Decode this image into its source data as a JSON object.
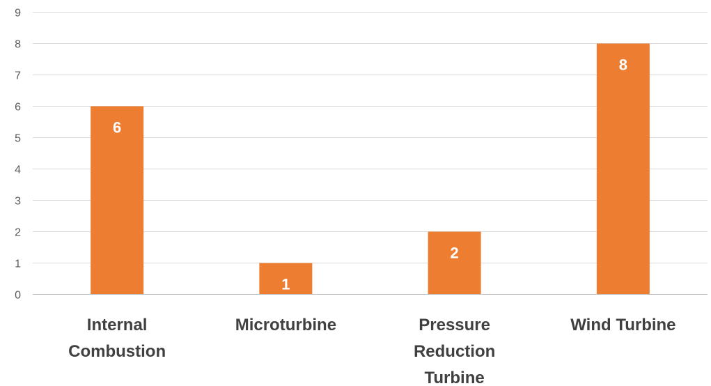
{
  "chart_data": {
    "type": "bar",
    "categories": [
      [
        "Internal",
        "Combustion"
      ],
      [
        "Microturbine"
      ],
      [
        "Pressure",
        "Reduction",
        "Turbine"
      ],
      [
        "Wind Turbine"
      ]
    ],
    "values": [
      6,
      1,
      2,
      8
    ],
    "data_labels": [
      "6",
      "1",
      "2",
      "8"
    ],
    "y_ticks": [
      "0",
      "1",
      "2",
      "3",
      "4",
      "5",
      "6",
      "7",
      "8",
      "9"
    ],
    "ylim": [
      0,
      9
    ],
    "grid": true,
    "legend": "none",
    "bar_color": "#ED7D31",
    "title": "",
    "xlabel": "",
    "ylabel": ""
  }
}
